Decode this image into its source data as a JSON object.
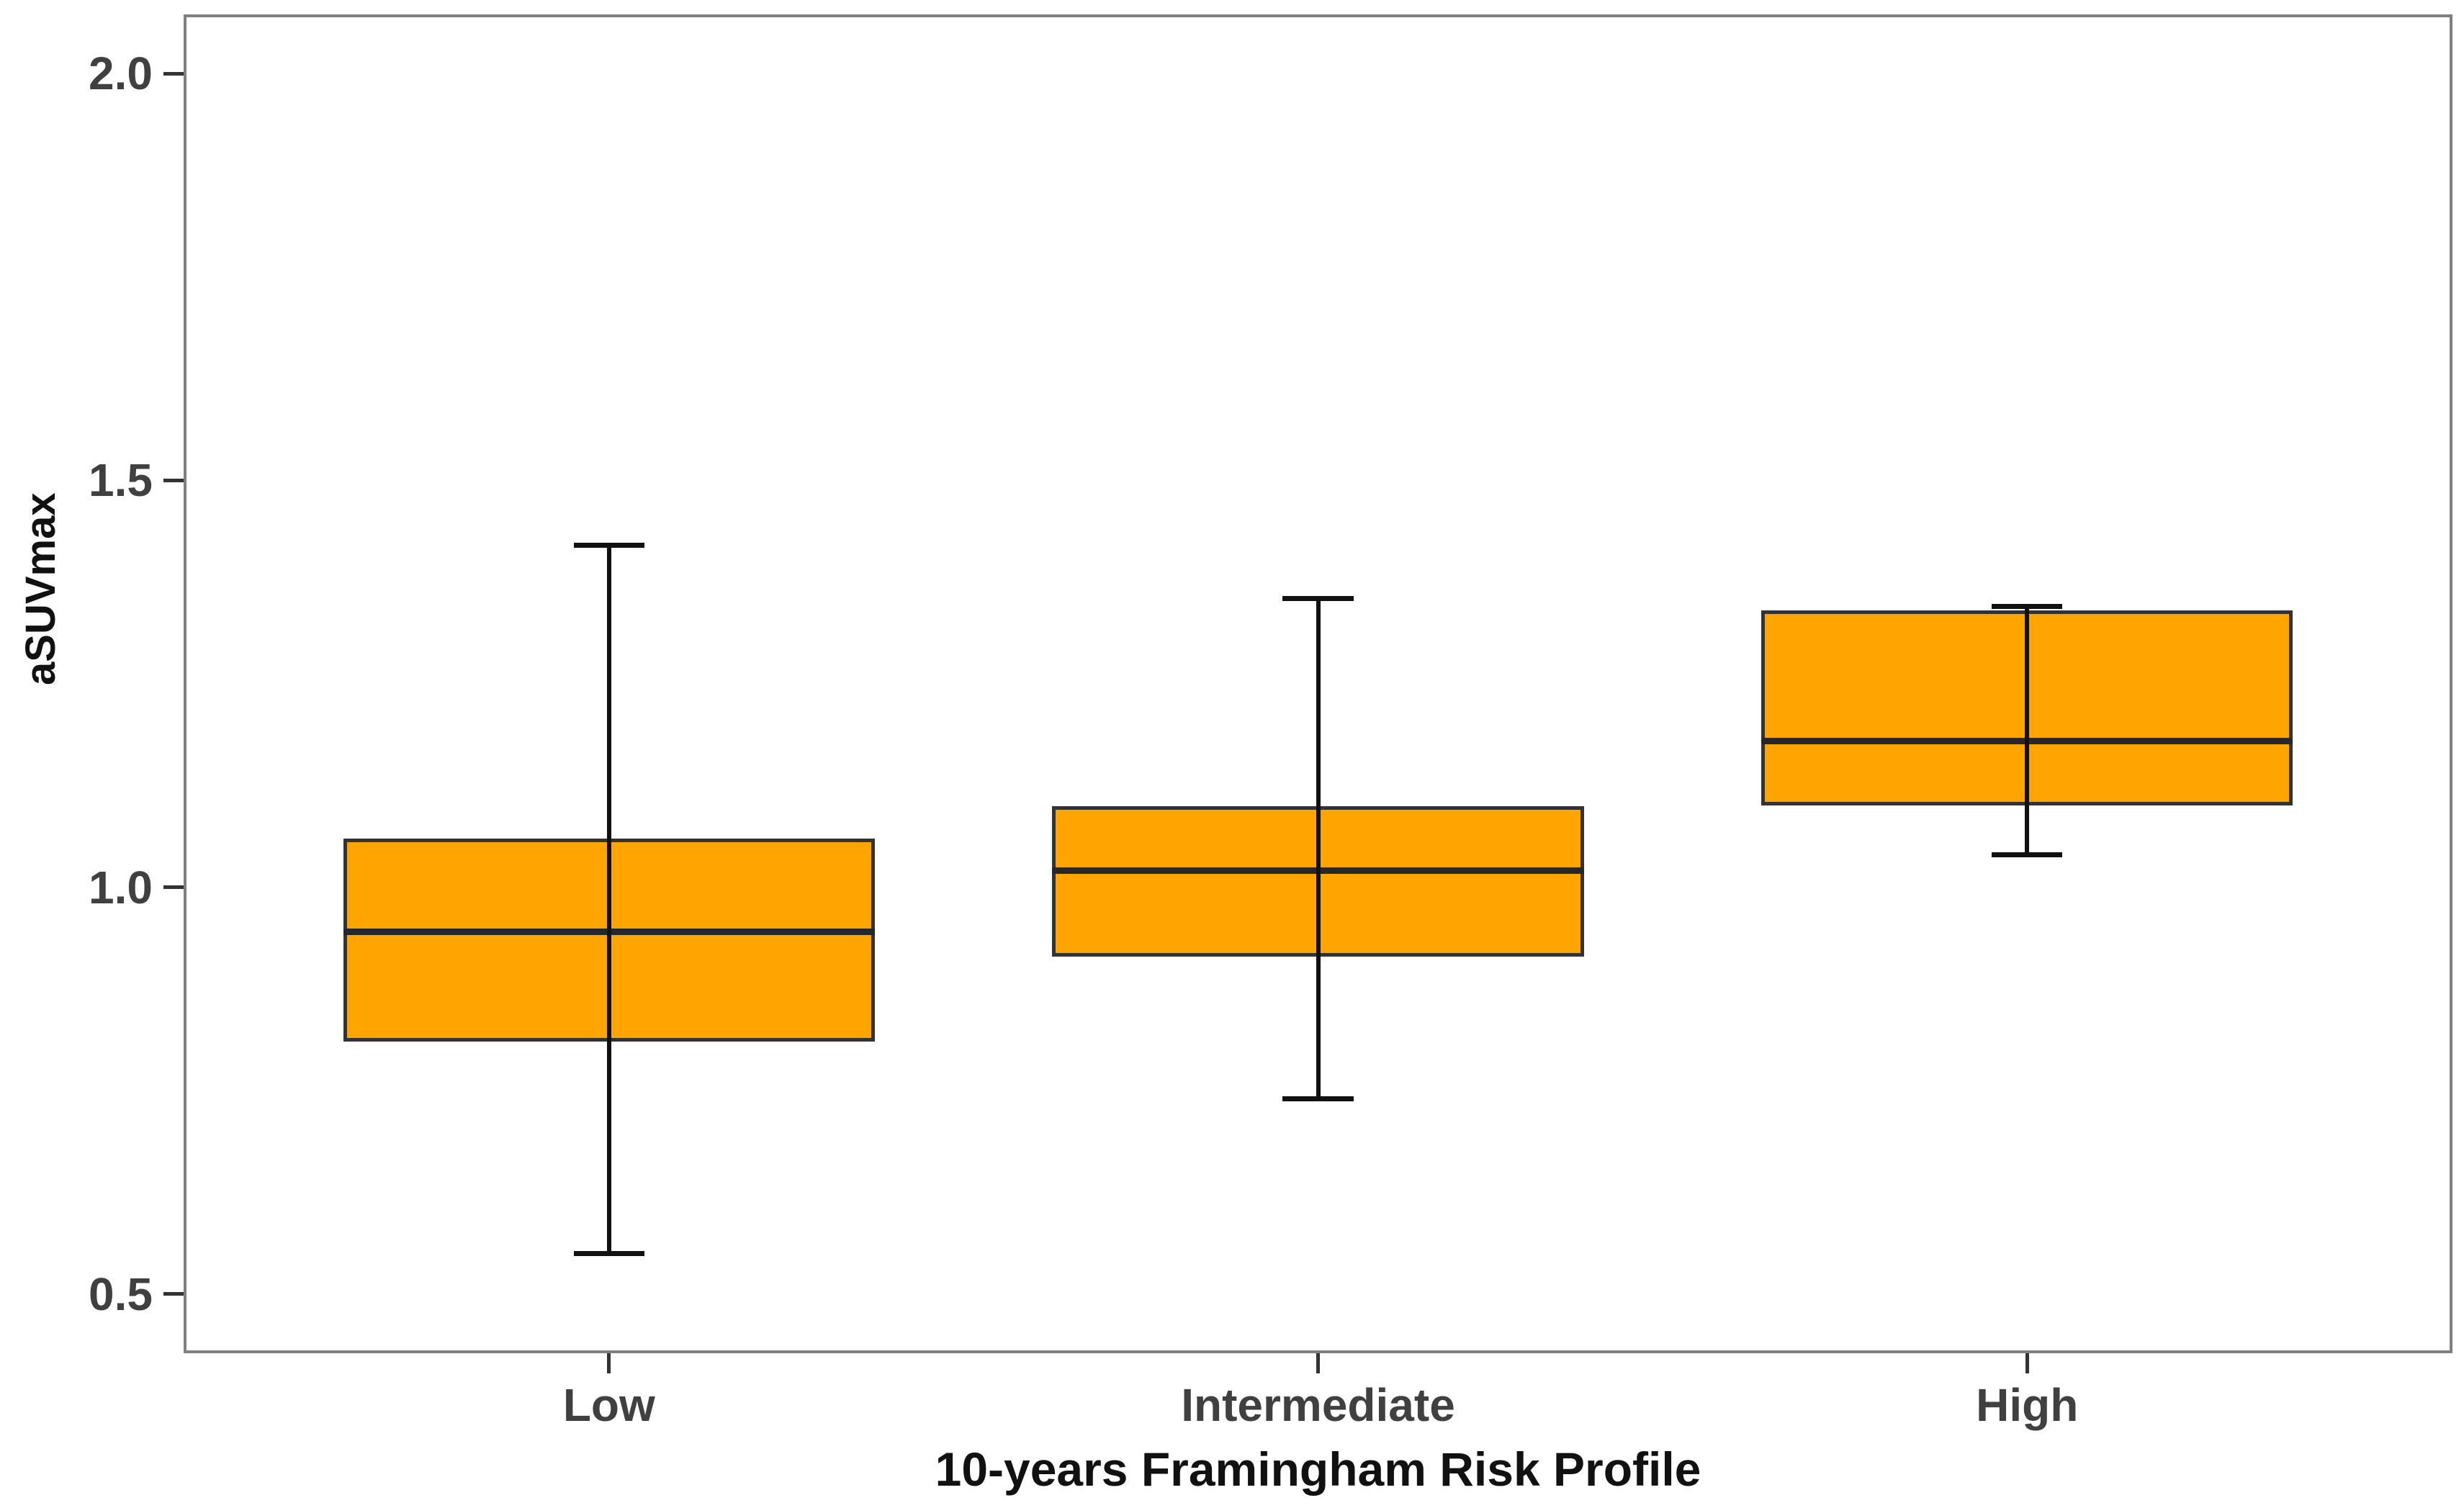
{
  "chart_data": {
    "type": "boxplot",
    "title": "",
    "xlabel": "10-years Framingham Risk Profile",
    "ylabel": "aSUVmax",
    "categories": [
      "Low",
      "Intermediate",
      "High"
    ],
    "ytick_values": [
      2.0,
      1.5,
      1.0,
      0.5
    ],
    "ytick_labels": [
      "2.0",
      "1.5",
      "1.0",
      "0.5"
    ],
    "ylim": [
      0.427,
      2.073
    ],
    "grid": false,
    "legend": false,
    "boxes": [
      {
        "category": "Low",
        "whisker_low": 0.55,
        "q1": 0.81,
        "median": 0.945,
        "q3": 1.06,
        "whisker_high": 1.42
      },
      {
        "category": "Intermediate",
        "whisker_low": 0.74,
        "q1": 0.915,
        "median": 1.02,
        "q3": 1.1,
        "whisker_high": 1.355
      },
      {
        "category": "High",
        "whisker_low": 1.04,
        "q1": 1.1,
        "median": 1.18,
        "q3": 1.34,
        "whisker_high": 1.345
      }
    ],
    "colors": {
      "box_fill": "#FEA502",
      "box_border": "#333333",
      "median": "#23272E",
      "whisker": "#111111",
      "panel_border": "#7F7F7F",
      "tick_label": "#404040",
      "axis_title": "#111111"
    }
  }
}
